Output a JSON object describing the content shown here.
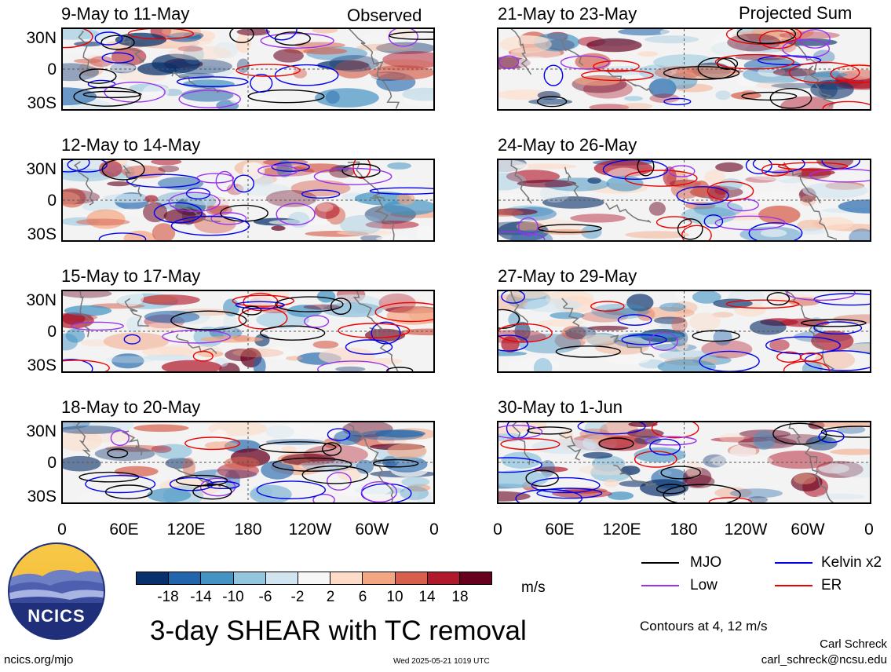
{
  "header": {
    "left_label": "Observed",
    "right_label": "Projected Sum"
  },
  "panels_left": [
    {
      "title": "9-May to 11-May"
    },
    {
      "title": "12-May to 14-May"
    },
    {
      "title": "15-May to 17-May"
    },
    {
      "title": "18-May to 20-May"
    }
  ],
  "panels_right": [
    {
      "title": "21-May to 23-May"
    },
    {
      "title": "24-May to 26-May"
    },
    {
      "title": "27-May to 29-May"
    },
    {
      "title": "30-May to 1-Jun"
    }
  ],
  "lat_labels": [
    "30N",
    "0",
    "30S"
  ],
  "lon_labels": [
    "0",
    "60E",
    "120E",
    "180",
    "120W",
    "60W",
    "0"
  ],
  "colorbar": {
    "labels": [
      "-18",
      "-14",
      "-10",
      "-6",
      "-2",
      "2",
      "6",
      "10",
      "14",
      "18"
    ],
    "colors": [
      "#08306b",
      "#2166ac",
      "#4393c3",
      "#92c5de",
      "#d1e5f0",
      "#f7f7f7",
      "#fddbc7",
      "#f4a582",
      "#d6604d",
      "#b2182b",
      "#67001f"
    ],
    "units": "m/s"
  },
  "legend": {
    "items": [
      {
        "label": "MJO",
        "color": "#000000"
      },
      {
        "label": "Kelvin x2",
        "color": "#0000ee"
      },
      {
        "label": "Low",
        "color": "#9a32f0"
      },
      {
        "label": "ER",
        "color": "#ee0000"
      }
    ],
    "note": "Contours at 4, 12 m/s"
  },
  "logo": {
    "text": "NCICS"
  },
  "title": "3-day SHEAR with TC removal",
  "footer": {
    "url": "ncics.org/mjo",
    "timestamp": "Wed 2025-05-21 1019 UTC",
    "author": "Carl Schreck",
    "email": "carl_schreck@ncsu.edu"
  }
}
